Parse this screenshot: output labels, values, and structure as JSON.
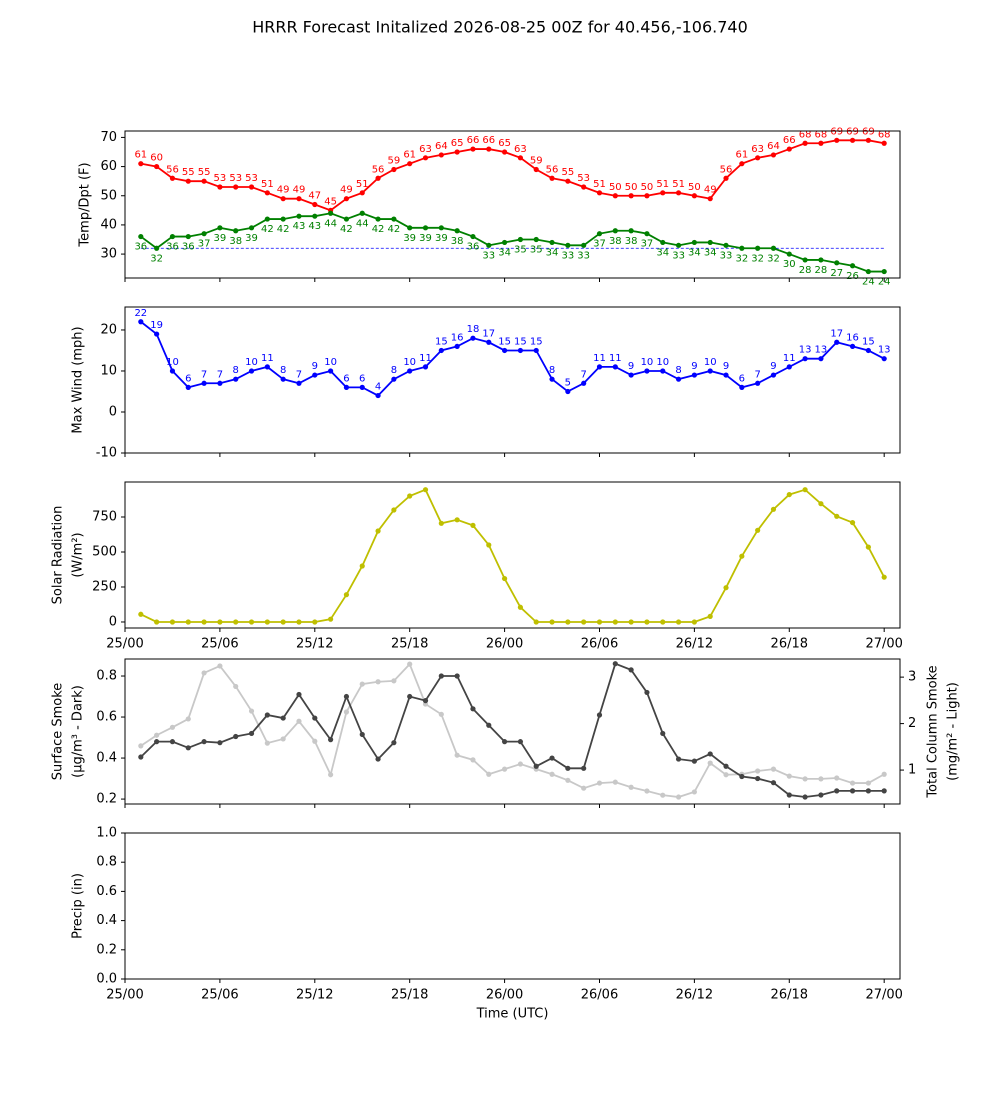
{
  "title": "HRRR Forecast Initalized 2026-08-25 00Z for 40.456,-106.740",
  "chart_data": [
    {
      "type": "line",
      "ylabel": [
        "Temp/Dpt (F)"
      ],
      "x": [
        1,
        2,
        3,
        4,
        5,
        6,
        7,
        8,
        9,
        10,
        11,
        12,
        13,
        14,
        15,
        16,
        17,
        18,
        19,
        20,
        21,
        22,
        23,
        24,
        25,
        26,
        27,
        28,
        29,
        30,
        31,
        32,
        33,
        34,
        35,
        36,
        37,
        38,
        39,
        40,
        41,
        42,
        43,
        44,
        45,
        46,
        47,
        48
      ],
      "xlim": [
        0,
        49
      ],
      "xticks": [
        0,
        6,
        12,
        18,
        24,
        30,
        36,
        42,
        48
      ],
      "ylim": [
        21.8,
        72.2
      ],
      "yticks": [
        30,
        40,
        50,
        60,
        70
      ],
      "hline": {
        "value": 32,
        "color": "blue"
      },
      "series": [
        {
          "color": "red",
          "label_position": "above",
          "values": [
            61,
            60,
            56,
            55,
            55,
            53,
            53,
            53,
            51,
            49,
            49,
            47,
            45,
            49,
            51,
            56,
            59,
            61,
            63,
            64,
            65,
            66,
            66,
            65,
            63,
            59,
            56,
            55,
            53,
            51,
            50,
            50,
            50,
            51,
            51,
            50,
            49,
            56,
            61,
            63,
            64,
            66,
            68,
            68,
            69,
            69,
            69,
            68
          ]
        },
        {
          "color": "green",
          "label_position": "below",
          "values": [
            36,
            32,
            36,
            36,
            37,
            39,
            38,
            39,
            42,
            42,
            43,
            43,
            44,
            42,
            44,
            42,
            42,
            39,
            39,
            39,
            38,
            36,
            33,
            34,
            35,
            35,
            34,
            33,
            33,
            37,
            38,
            38,
            37,
            34,
            33,
            34,
            34,
            33,
            32,
            32,
            32,
            30,
            28,
            28,
            27,
            26,
            24,
            24
          ]
        }
      ]
    },
    {
      "type": "line",
      "ylabel": [
        "Max Wind (mph)"
      ],
      "x": [
        1,
        2,
        3,
        4,
        5,
        6,
        7,
        8,
        9,
        10,
        11,
        12,
        13,
        14,
        15,
        16,
        17,
        18,
        19,
        20,
        21,
        22,
        23,
        24,
        25,
        26,
        27,
        28,
        29,
        30,
        31,
        32,
        33,
        34,
        35,
        36,
        37,
        38,
        39,
        40,
        41,
        42,
        43,
        44,
        45,
        46,
        47,
        48
      ],
      "xlim": [
        0,
        49
      ],
      "xticks": [
        0,
        6,
        12,
        18,
        24,
        30,
        36,
        42,
        48
      ],
      "ylim": [
        -10,
        25.6
      ],
      "yticks": [
        -10,
        0,
        10,
        20
      ],
      "series": [
        {
          "color": "blue",
          "label_position": "above",
          "values": [
            22,
            19,
            10,
            6,
            7,
            7,
            8,
            10,
            11,
            8,
            7,
            9,
            10,
            6,
            6,
            4,
            8,
            10,
            11,
            15,
            16,
            18,
            17,
            15,
            15,
            15,
            8,
            5,
            7,
            11,
            11,
            9,
            10,
            10,
            8,
            9,
            10,
            9,
            6,
            7,
            9,
            11,
            13,
            13,
            17,
            16,
            15,
            13
          ]
        }
      ]
    },
    {
      "type": "line",
      "ylabel": [
        "Solar Radiation",
        "(W/m²)"
      ],
      "x": [
        1,
        2,
        3,
        4,
        5,
        6,
        7,
        8,
        9,
        10,
        11,
        12,
        13,
        14,
        15,
        16,
        17,
        18,
        19,
        20,
        21,
        22,
        23,
        24,
        25,
        26,
        27,
        28,
        29,
        30,
        31,
        32,
        33,
        34,
        35,
        36,
        37,
        38,
        39,
        40,
        41,
        42,
        43,
        44,
        45,
        46,
        47,
        48
      ],
      "xlim": [
        0,
        49
      ],
      "xticks": [
        {
          "value": 0,
          "label": "25/00"
        },
        {
          "value": 6,
          "label": "25/06"
        },
        {
          "value": 12,
          "label": "25/12"
        },
        {
          "value": 18,
          "label": "25/18"
        },
        {
          "value": 24,
          "label": "26/00"
        },
        {
          "value": 30,
          "label": "26/06"
        },
        {
          "value": 36,
          "label": "26/12"
        },
        {
          "value": 42,
          "label": "26/18"
        },
        {
          "value": 48,
          "label": "27/00"
        }
      ],
      "ylim": [
        -43,
        1000
      ],
      "yticks": [
        0,
        250,
        500,
        750
      ],
      "series": [
        {
          "color": "#bfbf00",
          "values": [
            55,
            0,
            0,
            0,
            0,
            0,
            0,
            0,
            0,
            0,
            0,
            0,
            20,
            195,
            400,
            650,
            800,
            900,
            945,
            705,
            730,
            690,
            550,
            310,
            105,
            0,
            0,
            0,
            0,
            0,
            0,
            0,
            0,
            0,
            0,
            0,
            40,
            245,
            470,
            655,
            805,
            910,
            945,
            845,
            755,
            710,
            535,
            320
          ]
        }
      ]
    },
    {
      "type": "line",
      "ylabel": [
        "Surface Smoke",
        "(μg/m³ - Dark)"
      ],
      "y2label": [
        "Total Column Smoke",
        "(mg/m² - Light)"
      ],
      "x": [
        1,
        2,
        3,
        4,
        5,
        6,
        7,
        8,
        9,
        10,
        11,
        12,
        13,
        14,
        15,
        16,
        17,
        18,
        19,
        20,
        21,
        22,
        23,
        24,
        25,
        26,
        27,
        28,
        29,
        30,
        31,
        32,
        33,
        34,
        35,
        36,
        37,
        38,
        39,
        40,
        41,
        42,
        43,
        44,
        45,
        46,
        47,
        48
      ],
      "xlim": [
        0,
        49
      ],
      "xticks": [
        0,
        6,
        12,
        18,
        24,
        30,
        36,
        42,
        48
      ],
      "ylim": [
        0.176,
        0.883
      ],
      "yticks": [
        0.2,
        0.4,
        0.6,
        0.8
      ],
      "y2lim": [
        0.27,
        3.39
      ],
      "y2ticks": [
        1,
        2,
        3
      ],
      "series": [
        {
          "color": "#c8c8c8",
          "axis": "y2",
          "values": [
            1.52,
            1.75,
            1.92,
            2.1,
            3.09,
            3.24,
            2.8,
            2.27,
            1.58,
            1.67,
            2.05,
            1.62,
            0.9,
            2.25,
            2.85,
            2.9,
            2.92,
            3.28,
            2.42,
            2.2,
            1.32,
            1.22,
            0.91,
            1.02,
            1.13,
            1.02,
            0.91,
            0.78,
            0.61,
            0.72,
            0.74,
            0.63,
            0.55,
            0.46,
            0.42,
            0.53,
            1.15,
            0.9,
            0.91,
            0.98,
            1.02,
            0.87,
            0.81,
            0.81,
            0.83,
            0.72,
            0.72,
            0.91
          ]
        },
        {
          "color": "#444444",
          "values": [
            0.405,
            0.48,
            0.48,
            0.45,
            0.48,
            0.475,
            0.505,
            0.52,
            0.61,
            0.595,
            0.71,
            0.595,
            0.49,
            0.7,
            0.515,
            0.395,
            0.475,
            0.7,
            0.68,
            0.8,
            0.8,
            0.64,
            0.56,
            0.48,
            0.48,
            0.36,
            0.4,
            0.35,
            0.35,
            0.61,
            0.86,
            0.83,
            0.72,
            0.52,
            0.395,
            0.385,
            0.42,
            0.36,
            0.31,
            0.3,
            0.28,
            0.22,
            0.21,
            0.22,
            0.24,
            0.24,
            0.24,
            0.24
          ]
        }
      ]
    },
    {
      "type": "line",
      "ylabel": [
        "Precip (in)"
      ],
      "xlabel": "Time (UTC)",
      "xlim": [
        0,
        49
      ],
      "xticks": [
        {
          "value": 0,
          "label": "25/00"
        },
        {
          "value": 6,
          "label": "25/06"
        },
        {
          "value": 12,
          "label": "25/12"
        },
        {
          "value": 18,
          "label": "25/18"
        },
        {
          "value": 24,
          "label": "26/00"
        },
        {
          "value": 30,
          "label": "26/06"
        },
        {
          "value": 36,
          "label": "26/12"
        },
        {
          "value": 42,
          "label": "26/18"
        },
        {
          "value": 48,
          "label": "27/00"
        }
      ],
      "ylim": [
        0,
        1
      ],
      "yticks": [
        {
          "value": 0,
          "label": "0.0"
        },
        0.2,
        0.4,
        0.6,
        0.8,
        {
          "value": 1,
          "label": "1.0"
        }
      ],
      "series": []
    }
  ]
}
